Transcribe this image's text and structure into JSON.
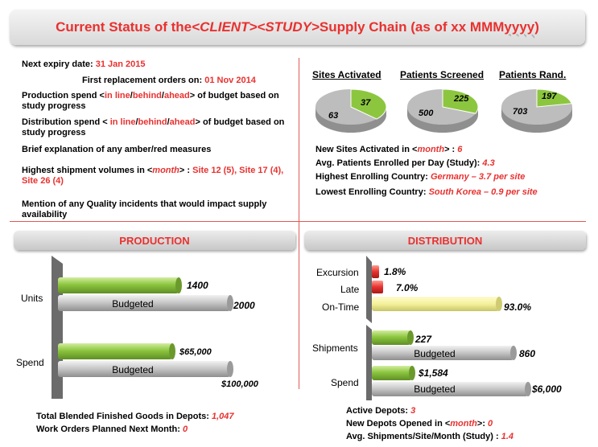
{
  "title": {
    "prefix": "Current Status of the ",
    "client": "<CLIENT>",
    "study": "<STUDY>",
    "suffix": " Supply Chain (as of xx MMM ",
    "year": "yyyy",
    "close": ")"
  },
  "left_info": {
    "expiry_label": "Next expiry date: ",
    "expiry_value": "31 Jan 2015",
    "replacement_label": "First replacement orders on: ",
    "replacement_value": "01 Nov 2014",
    "production_spend_prefix": "Production spend <",
    "production_spend_suffix": "> of budget based on study progress",
    "distribution_spend_prefix": "Distribution spend < ",
    "distribution_spend_suffix": "> of budget based on study progress",
    "options": [
      "in line",
      "behind",
      "ahead"
    ],
    "brief_explanation": "Brief explanation of any amber/red measures",
    "shipment_label_prefix": "Highest shipment volumes in <",
    "shipment_label_month": "month",
    "shipment_label_suffix": "> : ",
    "shipment_value": "Site 12 (5), Site 17 (4), Site 26 (4)",
    "quality_note": "Mention of any Quality incidents that would impact supply availability"
  },
  "pies": [
    {
      "heading": "Sites Activated",
      "green": 37,
      "grey": 63
    },
    {
      "heading": "Patients Screened",
      "green": 225,
      "grey": 500
    },
    {
      "heading": "Patients Rand.",
      "green": 197,
      "grey": 703
    }
  ],
  "right_info": {
    "new_sites_label_prefix": "New Sites Activated in <",
    "new_sites_label_month": "month",
    "new_sites_label_suffix": ">  : ",
    "new_sites_value": "6",
    "avg_patients_label": "Avg. Patients Enrolled per Day (Study): ",
    "avg_patients_value": "4.3",
    "highest_country_label": "Highest Enrolling Country: ",
    "highest_country_value": "Germany – 3.7 per site",
    "lowest_country_label": "Lowest Enrolling Country: ",
    "lowest_country_value": "South Korea – 0.9 per site"
  },
  "production": {
    "header": "PRODUCTION",
    "units_label": "Units",
    "units_actual": "1400",
    "units_budget": "2000",
    "spend_label": "Spend",
    "spend_actual": "$65,000",
    "spend_budget": "$100,000",
    "budgeted_label": "Budgeted",
    "blended_label": "Total Blended Finished Goods in Depots: ",
    "blended_value": "1,047",
    "work_orders_label": "Work Orders Planned Next Month: ",
    "work_orders_value": "0"
  },
  "distribution": {
    "header": "DISTRIBUTION",
    "excursion_label": "Excursion",
    "excursion_value": "1.8%",
    "late_label": "Late",
    "late_value": "7.0%",
    "ontime_label": "On-Time",
    "ontime_value": "93.0%",
    "shipments_label": "Shipments",
    "shipments_actual": "227",
    "shipments_budget": "860",
    "spend_label": "Spend",
    "spend_actual": "$1,584",
    "spend_budget": "$6,000",
    "budgeted_label": "Budgeted",
    "active_depots_label": "Active Depots: ",
    "active_depots_value": "3",
    "new_depots_label_prefix": "New Depots Opened in <",
    "new_depots_label_month": "month",
    "new_depots_label_suffix": ">: ",
    "new_depots_value": "0",
    "avg_shipments_label": "Avg. Shipments/Site/Month  (Study) : ",
    "avg_shipments_value": "1.4"
  },
  "colors": {
    "accent_red": "#e8312f",
    "bar_green": "#8cc63f",
    "bar_grey": "#c4c4c4",
    "bar_yellow": "#f5f29b",
    "pie_grey": "#bdbdbd",
    "pie_green": "#8cc63f"
  }
}
